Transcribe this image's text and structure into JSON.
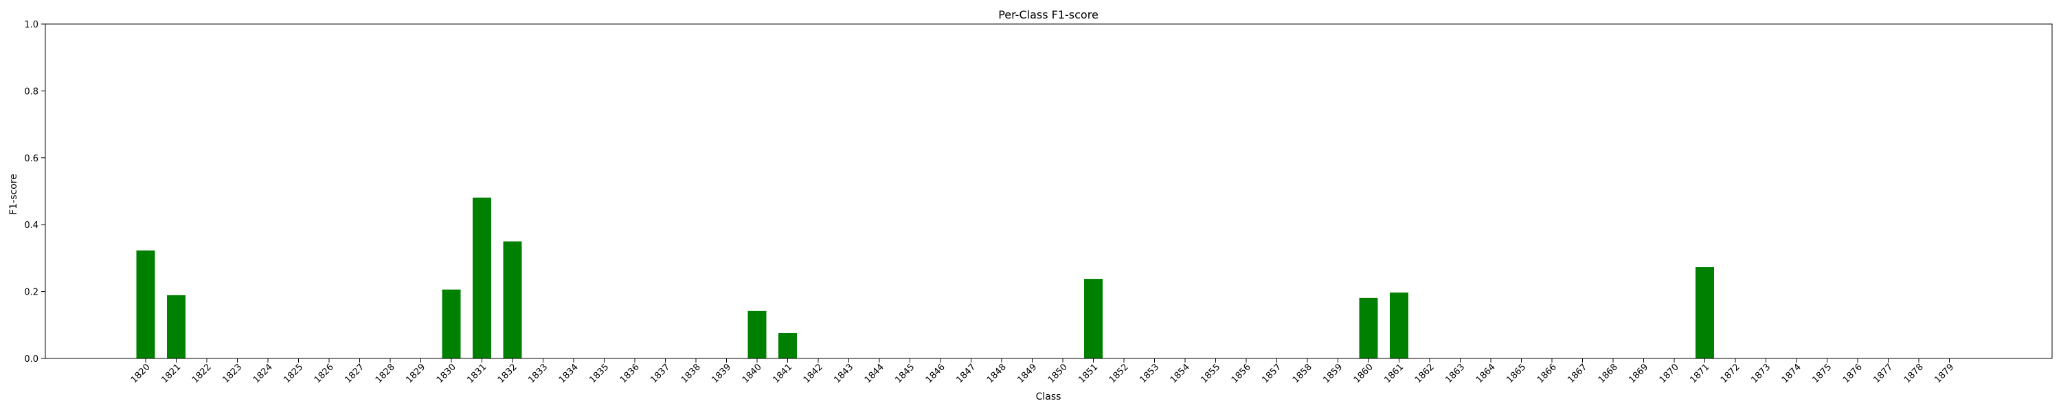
{
  "chart_data": {
    "type": "bar",
    "title": "Per-Class F1-score",
    "xlabel": "Class",
    "ylabel": "F1-score",
    "ylim": [
      0,
      1
    ],
    "yticks": [
      "0.0",
      "0.2",
      "0.4",
      "0.6",
      "0.8",
      "1.0"
    ],
    "grid": false,
    "bar_color": "#008000",
    "categories": [
      "1820",
      "1821",
      "1822",
      "1823",
      "1824",
      "1825",
      "1826",
      "1827",
      "1828",
      "1829",
      "1830",
      "1831",
      "1832",
      "1833",
      "1834",
      "1835",
      "1836",
      "1837",
      "1838",
      "1839",
      "1840",
      "1841",
      "1842",
      "1843",
      "1844",
      "1845",
      "1846",
      "1847",
      "1848",
      "1849",
      "1850",
      "1851",
      "1852",
      "1853",
      "1854",
      "1855",
      "1856",
      "1857",
      "1858",
      "1859",
      "1860",
      "1861",
      "1862",
      "1863",
      "1864",
      "1865",
      "1866",
      "1867",
      "1868",
      "1869",
      "1870",
      "1871",
      "1872",
      "1873",
      "1874",
      "1875",
      "1876",
      "1877",
      "1878",
      "1879"
    ],
    "values": [
      0.323,
      0.189,
      0,
      0,
      0,
      0,
      0,
      0,
      0,
      0,
      0.206,
      0.481,
      0.35,
      0,
      0,
      0,
      0,
      0,
      0,
      0,
      0.142,
      0.076,
      0,
      0,
      0,
      0,
      0,
      0,
      0,
      0,
      0,
      0.238,
      0,
      0,
      0,
      0,
      0,
      0,
      0,
      0,
      0.181,
      0.197,
      0,
      0,
      0,
      0,
      0,
      0,
      0,
      0,
      0,
      0.273,
      0,
      0,
      0,
      0,
      0,
      0,
      0,
      0
    ]
  }
}
